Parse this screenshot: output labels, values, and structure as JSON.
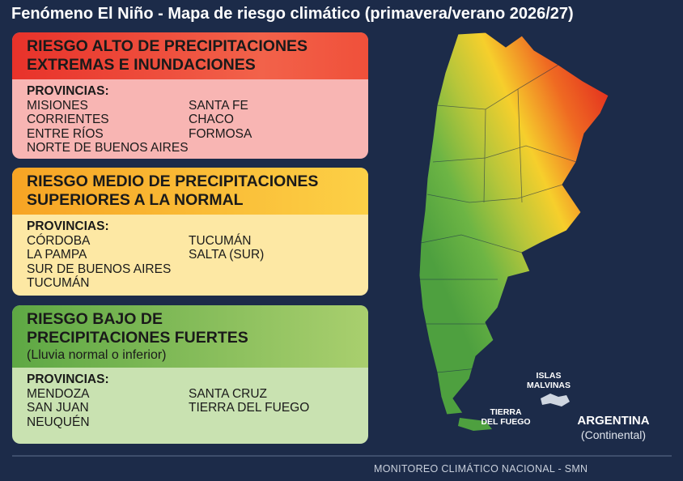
{
  "title": "Fenómeno El Niño - Mapa de riesgo climático (primavera/verano 2026/27)",
  "panels": [
    {
      "heading": [
        "RIESGO ALTO DE PRECIPITACIONES",
        "EXTREMAS E INUNDACIONES"
      ],
      "provinces_label": "PROVINCIAS:",
      "columns": [
        [
          "MISIONES",
          "CORRIENTES",
          "ENTRE RÍOS",
          "NORTE DE BUENOS AIRES"
        ],
        [
          "SANTA FE",
          "CHACO",
          "FORMOSA"
        ]
      ]
    },
    {
      "heading": [
        "RIESGO MEDIO DE PRECIPITACIONES",
        "SUPERIORES A LA NORMAL"
      ],
      "provinces_label": "PROVINCIAS:",
      "columns": [
        [
          "CÓRDOBA",
          "LA PAMPA",
          "SUR DE BUENOS AIRES",
          "TUCUMÁN"
        ],
        [
          "TUCUMÁN",
          "SALTA (SUR)"
        ]
      ]
    },
    {
      "heading": [
        "RIESGO BAJO DE",
        "PRECIPITACIONES FUERTES"
      ],
      "note": "(Lluvia normal o inferior)",
      "provinces_label": "PROVINCIAS:",
      "columns": [
        [
          "MENDOZA",
          "SAN JUAN",
          "NEUQUÉN"
        ],
        [
          "SANTA CRUZ",
          "TIERRA DEL FUEGO"
        ]
      ]
    }
  ],
  "map": {
    "malvinas": [
      "ISLAS",
      "MALVINAS"
    ],
    "tierra_del_fuego": [
      "TIERRA",
      "DEL FUEGO"
    ],
    "country": "ARGENTINA",
    "country_note": "(Continental)"
  },
  "footer": "MONITOREO CLIMÁTICO NACIONAL - SMN"
}
